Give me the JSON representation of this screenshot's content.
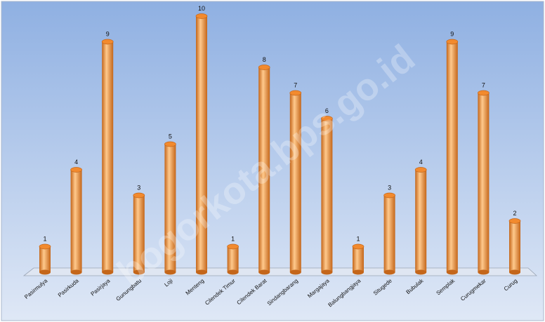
{
  "watermark": "bogorkota.bps.go.id",
  "chart_data": {
    "type": "bar",
    "title": "",
    "xlabel": "",
    "ylabel": "",
    "ylim": [
      0,
      10
    ],
    "grid": false,
    "legend": "none",
    "categories": [
      "Pasirmulya",
      "Pasirkuda",
      "Pasirjaya",
      "Gunungbatu",
      "Loji",
      "Menteng",
      "Cilendek Timur",
      "Cilendek Barat",
      "Sindangbarang",
      "Margajaya",
      "Balungbangjaya",
      "Situgede",
      "Bubulak",
      "Semplak",
      "Curugmekar",
      "Curug"
    ],
    "series": [
      {
        "values": [
          1,
          4,
          9,
          3,
          5,
          10,
          1,
          8,
          7,
          6,
          1,
          3,
          4,
          9,
          7,
          2
        ]
      }
    ],
    "colors": {
      "bar": "#f28a2e",
      "bar_light": "#ffc98c",
      "bar_dark": "#c4661a",
      "background_top": "#8fb0e2",
      "background_bottom": "#dfe8f6",
      "floor": "#dfe6f2"
    }
  }
}
